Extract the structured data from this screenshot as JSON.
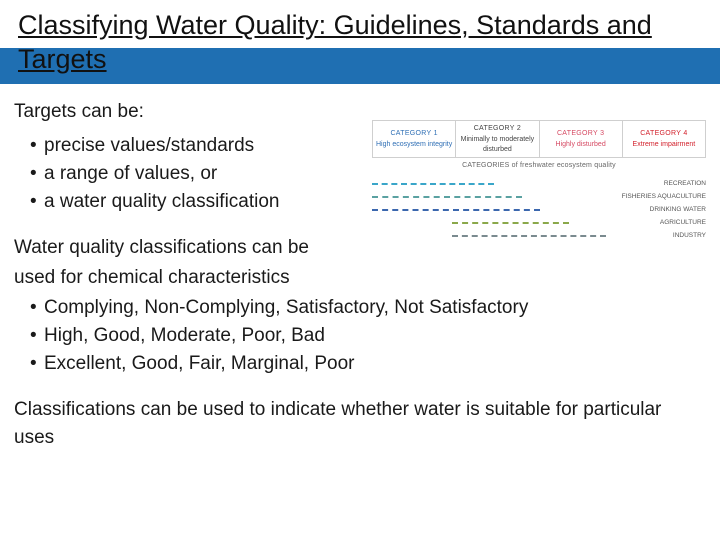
{
  "title": "Classifying Water Quality: Guidelines, Standards and Targets",
  "intro": "Targets can be:",
  "bullets1": {
    "b0": "precise values/standards",
    "b1": "a range of values, or",
    "b2": "a water quality classification"
  },
  "para2a": "Water quality classifications can be",
  "para2b": "used for chemical characteristics",
  "bullets2": {
    "b0": "Complying, Non-Complying, Satisfactory, Not Satisfactory",
    "b1": "High, Good, Moderate, Poor, Bad",
    "b2": "Excellent, Good, Fair,  Marginal, Poor"
  },
  "para3": "Classifications can be used to indicate whether water is suitable for  particular uses",
  "diagram": {
    "categories": {
      "c0": {
        "num": "CATEGORY 1",
        "desc": "High ecosystem integrity",
        "color": "#2f6fb5"
      },
      "c1": {
        "num": "CATEGORY 2",
        "desc": "Minimally to moderately disturbed",
        "color": "#444444"
      },
      "c2": {
        "num": "CATEGORY 3",
        "desc": "Highly disturbed",
        "color": "#d64a63"
      },
      "c3": {
        "num": "CATEGORY 4",
        "desc": "Extreme impairment",
        "color": "#d21f2a"
      }
    },
    "caption": "CATEGORIES of freshwater ecosystem quality",
    "uses": {
      "u0": {
        "label": "RECREATION",
        "color": "#3aa6c9",
        "startPct": 0,
        "endPct": 52
      },
      "u1": {
        "label": "FISHERIES AQUACULTURE",
        "color": "#5aa1a1",
        "startPct": 0,
        "endPct": 64
      },
      "u2": {
        "label": "DRINKING WATER",
        "color": "#3b67ae",
        "startPct": 0,
        "endPct": 72
      },
      "u3": {
        "label": "AGRICULTURE",
        "color": "#8aa84a",
        "startPct": 34,
        "endPct": 84
      },
      "u4": {
        "label": "INDUSTRY",
        "color": "#7a8a8f",
        "startPct": 34,
        "endPct": 100
      }
    }
  },
  "colors": {
    "band": "#1f6fb2"
  }
}
